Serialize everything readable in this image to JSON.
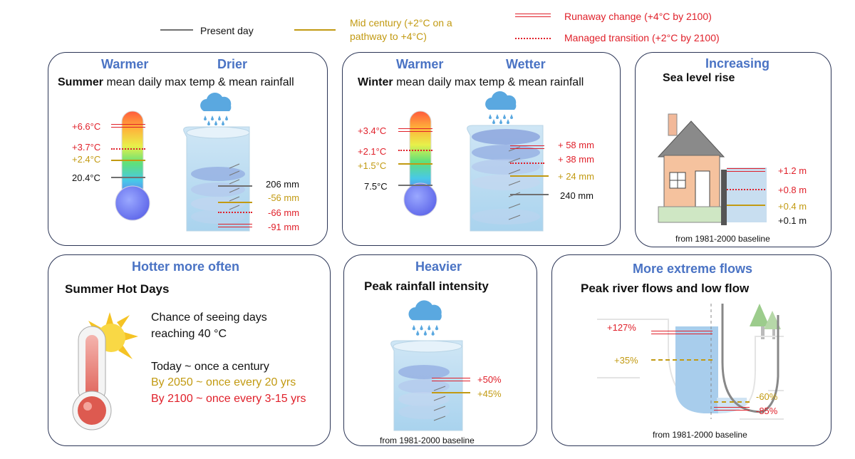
{
  "legend": {
    "present_day": "Present day",
    "mid_century": "Mid century (+2°C on a pathway to +4°C)",
    "mid_century_line1": "Mid century (+2°C on a",
    "mid_century_line2": "pathway to +4°C)",
    "runaway": "Runaway change (+4°C by 2100)",
    "managed": "Managed transition (+2°C by 2100)"
  },
  "summer": {
    "head_left": "Warmer",
    "head_right": "Drier",
    "title_bold": "Summer",
    "title_rest": " mean daily max temp & mean rainfall",
    "temps": [
      "+6.6°C",
      "+3.7°C",
      "+2.4°C",
      "20.4°C"
    ],
    "rain": [
      "206 mm",
      "-56 mm",
      "-66 mm",
      "-91 mm"
    ]
  },
  "winter": {
    "head_left": "Warmer",
    "head_right": "Wetter",
    "title_bold": "Winter",
    "title_rest": " mean daily max temp & mean rainfall",
    "temps": [
      "+3.4°C",
      "+2.1°C",
      "+1.5°C",
      "7.5°C"
    ],
    "rain": [
      "+ 58 mm",
      "+ 38 mm",
      "+ 24 mm",
      "240 mm"
    ]
  },
  "sea": {
    "head": "Increasing",
    "title": "Sea level rise",
    "values": [
      "+1.2 m",
      "+0.8 m",
      "+0.4 m",
      "+0.1 m"
    ],
    "baseline": "from 1981-2000 baseline"
  },
  "hot": {
    "head": "Hotter more often",
    "title": "Summer Hot Days",
    "chance_line1": "Chance of seeing days",
    "chance_line2": "reaching 40 °C",
    "today": "Today ~ once a century",
    "by2050": "By 2050 ~ once every 20 yrs",
    "by2100": "By 2100 ~ once every 3-15 yrs"
  },
  "peak_rain": {
    "head": "Heavier",
    "title": "Peak rainfall intensity",
    "values": [
      "+50%",
      "+45%"
    ],
    "baseline": "from 1981-2000 baseline"
  },
  "flows": {
    "head": "More extreme flows",
    "title": "Peak river flows and low flow",
    "values": [
      "+127%",
      "+35%",
      "-60%",
      "-85%"
    ],
    "baseline": "from 1981-2000 baseline"
  },
  "colors": {
    "heading_blue": "#4a73c4",
    "red": "#e0202a",
    "gold": "#c29a12",
    "gray": "#707070",
    "border": "#2b3556"
  }
}
